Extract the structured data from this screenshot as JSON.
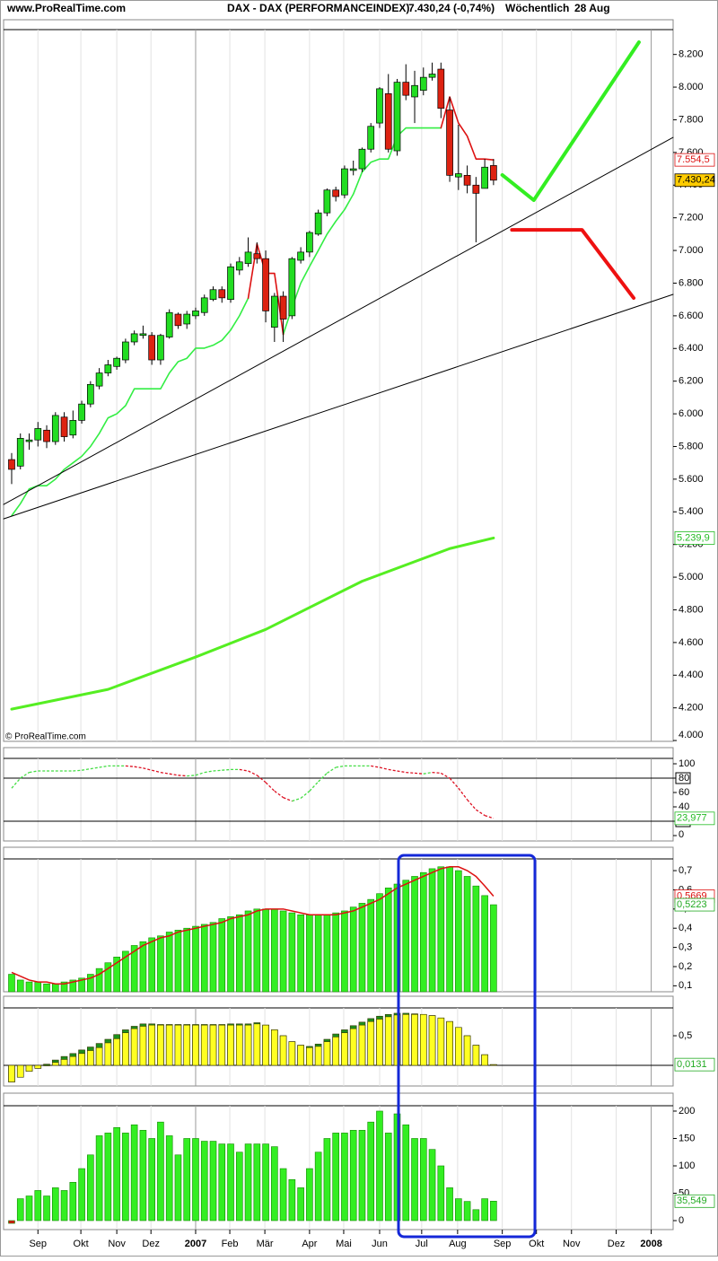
{
  "chart_data": [
    {
      "type": "candlestick",
      "source": "www.ProRealTime.com",
      "title": "DAX - DAX (PERFORMANCEINDEX)",
      "subtitle": "7.430,24 (-0,74%)",
      "period": "Wöchentlich",
      "date": "28 Aug",
      "watermark": "© ProRealTime.com",
      "x": [
        0,
        1,
        2,
        3,
        4,
        5,
        6,
        7,
        8,
        9,
        10,
        11,
        12,
        13,
        14,
        15,
        16,
        17,
        18,
        19,
        20,
        21,
        22,
        23,
        24,
        25,
        26,
        27,
        28,
        29,
        30,
        31,
        32,
        33,
        34,
        35,
        36,
        37,
        38,
        39,
        40,
        41,
        42,
        43,
        44,
        45,
        46,
        47,
        48,
        49,
        50,
        51,
        52,
        53,
        54,
        55
      ],
      "open": [
        5720,
        5680,
        5830,
        5840,
        5900,
        5830,
        5980,
        5870,
        5960,
        6060,
        6170,
        6250,
        6290,
        6330,
        6440,
        6480,
        6480,
        6330,
        6470,
        6610,
        6550,
        6600,
        6620,
        6700,
        6760,
        6700,
        6880,
        6920,
        6980,
        6950,
        6530,
        6720,
        6600,
        6940,
        6990,
        7100,
        7230,
        7370,
        7340,
        7490,
        7500,
        7620,
        7780,
        7960,
        7610,
        8030,
        7940,
        7980,
        8060,
        8110,
        7860,
        7450,
        7460,
        7400,
        7380,
        7520
      ],
      "high": [
        5760,
        5880,
        5880,
        5950,
        5930,
        6010,
        6010,
        6020,
        6080,
        6200,
        6280,
        6330,
        6350,
        6460,
        6510,
        6540,
        6500,
        6490,
        6640,
        6620,
        6630,
        6650,
        6730,
        6780,
        6780,
        6920,
        6960,
        7080,
        7050,
        7000,
        6740,
        6750,
        6960,
        7020,
        7120,
        7250,
        7380,
        7390,
        7520,
        7550,
        7630,
        7780,
        8000,
        8080,
        8050,
        8140,
        8100,
        8120,
        8150,
        8150,
        7940,
        7770,
        7520,
        7450,
        7560,
        7560
      ],
      "low": [
        5570,
        5660,
        5780,
        5800,
        5790,
        5810,
        5830,
        5850,
        5940,
        6040,
        6150,
        6230,
        6270,
        6310,
        6420,
        6460,
        6300,
        6300,
        6460,
        6520,
        6520,
        6580,
        6600,
        6690,
        6680,
        6680,
        6850,
        6900,
        6920,
        6560,
        6440,
        6440,
        6580,
        6920,
        6960,
        7090,
        7210,
        7300,
        7320,
        7460,
        7480,
        7600,
        7750,
        7600,
        7580,
        7920,
        7780,
        7950,
        8040,
        7810,
        7420,
        7370,
        7350,
        7050,
        7380,
        7400
      ],
      "close": [
        5660,
        5850,
        5840,
        5910,
        5830,
        5990,
        5860,
        5960,
        6060,
        6180,
        6250,
        6300,
        6340,
        6440,
        6490,
        6490,
        6330,
        6480,
        6620,
        6540,
        6610,
        6630,
        6710,
        6760,
        6710,
        6900,
        6930,
        6990,
        6950,
        6630,
        6720,
        6580,
        6950,
        6990,
        7110,
        7230,
        7370,
        7330,
        7500,
        7500,
        7620,
        7760,
        7990,
        7620,
        8030,
        7950,
        8010,
        8060,
        8080,
        7870,
        7460,
        7470,
        7400,
        7350,
        7510,
        7430.24
      ],
      "up_color": "#22dd22",
      "down_color": "#dd2211",
      "xlim": [
        -0.92,
        75.5
      ],
      "ylim": [
        3995,
        8352
      ],
      "yticks": [
        {
          "value": 4000,
          "label": "4.000"
        },
        {
          "value": 4200,
          "label": "4.200"
        },
        {
          "value": 4400,
          "label": "4.400"
        },
        {
          "value": 4600,
          "label": "4.600"
        },
        {
          "value": 4800,
          "label": "4.800"
        },
        {
          "value": 5000,
          "label": "5.000"
        },
        {
          "value": 5200,
          "label": "5.200"
        },
        {
          "value": 5400,
          "label": "5.400"
        },
        {
          "value": 5600,
          "label": "5.600"
        },
        {
          "value": 5800,
          "label": "5.800"
        },
        {
          "value": 6000,
          "label": "6.000"
        },
        {
          "value": 6200,
          "label": "6.200"
        },
        {
          "value": 6400,
          "label": "6.400"
        },
        {
          "value": 6600,
          "label": "6.600"
        },
        {
          "value": 6800,
          "label": "6.800"
        },
        {
          "value": 7000,
          "label": "7.000"
        },
        {
          "value": 7200,
          "label": "7.200"
        },
        {
          "value": 7400,
          "label": "7.400"
        },
        {
          "value": 7600,
          "label": "7.600"
        },
        {
          "value": 7800,
          "label": "7.800"
        },
        {
          "value": 8000,
          "label": "8.000"
        },
        {
          "value": 8200,
          "label": "8.200"
        }
      ],
      "lines": [
        {
          "color": "#33ee44",
          "width": 1.6,
          "values": [
            5376,
            5450,
            5540,
            5560,
            5560,
            5600,
            5660,
            5700,
            5740,
            5800,
            5880,
            5975,
            6000,
            6050,
            6153,
            6153,
            6153,
            6153,
            6250,
            6319,
            6340,
            6402,
            6402,
            6420,
            6450,
            6513,
            6600,
            6708,
            null,
            null,
            null,
            6486,
            6650,
            6800,
            6902,
            7000,
            7100,
            7179,
            7250,
            7345,
            7480,
            7540,
            7560,
            7560,
            7700,
            7750,
            7750,
            7750,
            7750,
            7750,
            null,
            null,
            null,
            null,
            null,
            null
          ]
        },
        {
          "color": "#dd1111",
          "width": 1.6,
          "values": [
            null,
            null,
            null,
            null,
            null,
            null,
            null,
            null,
            null,
            null,
            null,
            null,
            null,
            null,
            null,
            null,
            null,
            null,
            null,
            null,
            null,
            null,
            null,
            null,
            null,
            null,
            null,
            6708,
            7040,
            6860,
            6860,
            6486,
            null,
            null,
            null,
            null,
            null,
            null,
            null,
            null,
            null,
            null,
            null,
            null,
            null,
            null,
            null,
            null,
            null,
            7750,
            7940,
            7780,
            7700,
            7560,
            7560,
            7554.5
          ]
        },
        {
          "color": "#55ee22",
          "width": 3,
          "x": [
            0,
            11,
            21,
            29,
            40,
            50,
            55
          ],
          "values": [
            4192,
            4313,
            4511,
            4680,
            4975,
            5175,
            5239.9
          ]
        },
        {
          "color": "#000000",
          "width": 1,
          "x": [
            -0.92,
            75.5
          ],
          "values": [
            5445,
            7692
          ]
        },
        {
          "color": "#000000",
          "width": 1,
          "x": [
            -0.92,
            75.5
          ],
          "values": [
            5357,
            6731
          ]
        },
        {
          "color": "#33ee22",
          "width": 4,
          "x": [
            56,
            59.6,
            71.6
          ],
          "values": [
            7462,
            7308,
            8275
          ]
        },
        {
          "color": "#ee1111",
          "width": 4,
          "x": [
            57.1,
            65.1,
            71
          ],
          "values": [
            7126,
            7126,
            6709
          ]
        }
      ],
      "markers": [
        {
          "value": 7554.5,
          "label": "7.554,5",
          "color": "#dd1111",
          "bg": "#ffffff"
        },
        {
          "value": 7430.24,
          "label": "7.430,24",
          "color": "#000000",
          "bg": "#ffcc00"
        },
        {
          "value": 5239.9,
          "label": "5.239,9",
          "color": "#22bb22",
          "bg": "#ffffff"
        }
      ]
    },
    {
      "type": "line",
      "values": [
        66,
        80,
        88,
        90,
        90,
        90,
        90,
        90,
        91,
        93,
        95,
        97,
        97,
        97,
        96,
        94,
        91,
        88,
        86,
        84,
        83,
        84,
        88,
        90,
        91,
        92,
        92,
        90,
        84,
        74,
        62,
        53,
        48,
        52,
        62,
        75,
        87,
        95,
        97,
        97,
        97,
        97,
        95,
        92,
        90,
        88,
        87,
        86,
        88,
        87,
        80,
        66,
        50,
        36,
        28,
        23.977
      ],
      "up_color": "#44dd44",
      "down_color": "#dd1122",
      "levels": [
        80,
        20
      ],
      "ylim": [
        -7.5,
        107.5
      ],
      "yticks": [
        0,
        20,
        40,
        60,
        80,
        100
      ],
      "markers": [
        {
          "value": 23.977,
          "label": "23,977",
          "color": "#22bb22",
          "bg": "#ffffff"
        }
      ]
    },
    {
      "type": "bar",
      "values": [
        0.16,
        0.13,
        0.12,
        0.12,
        0.11,
        0.11,
        0.12,
        0.13,
        0.14,
        0.16,
        0.19,
        0.22,
        0.25,
        0.28,
        0.31,
        0.33,
        0.35,
        0.36,
        0.38,
        0.39,
        0.4,
        0.41,
        0.42,
        0.43,
        0.45,
        0.46,
        0.47,
        0.49,
        0.5,
        0.5,
        0.5,
        0.49,
        0.48,
        0.47,
        0.47,
        0.47,
        0.47,
        0.48,
        0.49,
        0.51,
        0.53,
        0.55,
        0.58,
        0.61,
        0.63,
        0.65,
        0.67,
        0.69,
        0.71,
        0.72,
        0.72,
        0.7,
        0.67,
        0.62,
        0.57,
        0.5223
      ],
      "color": "#33ee22",
      "edge": "#118800",
      "line": {
        "color": "#dd1111",
        "values": [
          0.17,
          0.15,
          0.13,
          0.12,
          0.12,
          0.11,
          0.11,
          0.12,
          0.13,
          0.14,
          0.16,
          0.19,
          0.22,
          0.25,
          0.28,
          0.31,
          0.33,
          0.35,
          0.36,
          0.38,
          0.39,
          0.4,
          0.41,
          0.42,
          0.43,
          0.45,
          0.46,
          0.47,
          0.49,
          0.5,
          0.5,
          0.5,
          0.49,
          0.48,
          0.47,
          0.47,
          0.47,
          0.47,
          0.48,
          0.49,
          0.51,
          0.53,
          0.55,
          0.58,
          0.61,
          0.63,
          0.65,
          0.67,
          0.69,
          0.71,
          0.72,
          0.72,
          0.7,
          0.67,
          0.62,
          0.5669
        ]
      },
      "ylim": [
        0.069,
        0.761
      ],
      "yticks": [
        {
          "value": 0.1,
          "label": "0,1"
        },
        {
          "value": 0.2,
          "label": "0,2"
        },
        {
          "value": 0.3,
          "label": "0,3"
        },
        {
          "value": 0.4,
          "label": "0,4"
        },
        {
          "value": 0.5,
          "label": "0,5"
        },
        {
          "value": 0.6,
          "label": "0,6"
        },
        {
          "value": 0.7,
          "label": "0,7"
        }
      ],
      "markers": [
        {
          "value": 0.5669,
          "label": "0,5669",
          "color": "#dd1111",
          "bg": "#ffffff"
        },
        {
          "value": 0.5223,
          "label": "0,5223",
          "color": "#22aa22",
          "bg": "#ffffff"
        }
      ]
    },
    {
      "type": "bar",
      "series": [
        {
          "color": "#1d8f1d",
          "values": [
            -0.28,
            -0.2,
            -0.1,
            -0.05,
            0.02,
            0.09,
            0.15,
            0.2,
            0.26,
            0.31,
            0.37,
            0.44,
            0.52,
            0.6,
            0.66,
            0.7,
            0.7,
            0.69,
            0.69,
            0.69,
            0.69,
            0.69,
            0.69,
            0.69,
            0.69,
            0.7,
            0.7,
            0.7,
            0.72,
            0.68,
            0.6,
            0.5,
            0.4,
            0.34,
            0.32,
            0.36,
            0.44,
            0.53,
            0.6,
            0.67,
            0.73,
            0.79,
            0.83,
            0.86,
            0.88,
            0.88,
            0.87,
            0.86,
            0.84,
            0.8,
            0.74,
            0.64,
            0.5,
            0.34,
            0.18,
            0.0131
          ]
        },
        {
          "color": "#ffff22",
          "values": [
            -0.28,
            -0.2,
            -0.1,
            -0.05,
            0.0,
            0.05,
            0.1,
            0.15,
            0.2,
            0.25,
            0.3,
            0.38,
            0.45,
            0.55,
            0.62,
            0.66,
            0.68,
            0.68,
            0.68,
            0.68,
            0.68,
            0.68,
            0.68,
            0.68,
            0.68,
            0.68,
            0.68,
            0.68,
            0.7,
            0.68,
            0.6,
            0.5,
            0.4,
            0.34,
            0.3,
            0.32,
            0.4,
            0.48,
            0.55,
            0.62,
            0.68,
            0.74,
            0.78,
            0.82,
            0.85,
            0.86,
            0.86,
            0.86,
            0.84,
            0.8,
            0.74,
            0.64,
            0.5,
            0.34,
            0.18,
            0.0131
          ]
        }
      ],
      "edge": "#333300",
      "levels": [
        0
      ],
      "ylim": [
        -0.348,
        0.97
      ],
      "yticks": [
        {
          "value": 0.5,
          "label": "0,5"
        }
      ],
      "markers": [
        {
          "value": 0.0131,
          "label": "0,0131",
          "color": "#22aa22",
          "bg": "#ffffff"
        }
      ]
    },
    {
      "type": "bar",
      "values": [
        -5,
        40,
        45,
        55,
        45,
        60,
        55,
        70,
        95,
        120,
        155,
        160,
        170,
        160,
        175,
        165,
        150,
        180,
        155,
        120,
        150,
        150,
        145,
        145,
        140,
        140,
        125,
        140,
        140,
        140,
        135,
        95,
        75,
        60,
        95,
        125,
        150,
        160,
        160,
        165,
        165,
        180,
        200,
        160,
        195,
        175,
        150,
        150,
        130,
        100,
        60,
        40,
        35,
        20,
        40,
        35.549
      ],
      "color": "#33ee22",
      "negative_color": "#dd1111",
      "edge": "#118800",
      "ylim": [
        -16.4,
        209.8
      ],
      "yticks": [
        0,
        50,
        100,
        150,
        200
      ],
      "markers": [
        {
          "value": 35.549,
          "label": "35,549",
          "color": "#22aa22",
          "bg": "#ffffff"
        }
      ],
      "xticks": [
        {
          "value": 3,
          "label": "Sep"
        },
        {
          "value": 7.9,
          "label": "Okt"
        },
        {
          "value": 12,
          "label": "Nov"
        },
        {
          "value": 15.9,
          "label": "Dez"
        },
        {
          "value": 21,
          "label": "2007"
        },
        {
          "value": 24.9,
          "label": "Feb"
        },
        {
          "value": 28.9,
          "label": "Mär"
        },
        {
          "value": 34,
          "label": "Apr"
        },
        {
          "value": 37.9,
          "label": "Mai"
        },
        {
          "value": 42,
          "label": "Jun"
        },
        {
          "value": 46.8,
          "label": "Jul"
        },
        {
          "value": 50.9,
          "label": "Aug"
        },
        {
          "value": 56,
          "label": "Sep"
        },
        {
          "value": 59.9,
          "label": "Okt"
        },
        {
          "value": 63.9,
          "label": "Nov"
        },
        {
          "value": 69,
          "label": "Dez"
        },
        {
          "value": 73,
          "label": "2008"
        }
      ]
    }
  ]
}
